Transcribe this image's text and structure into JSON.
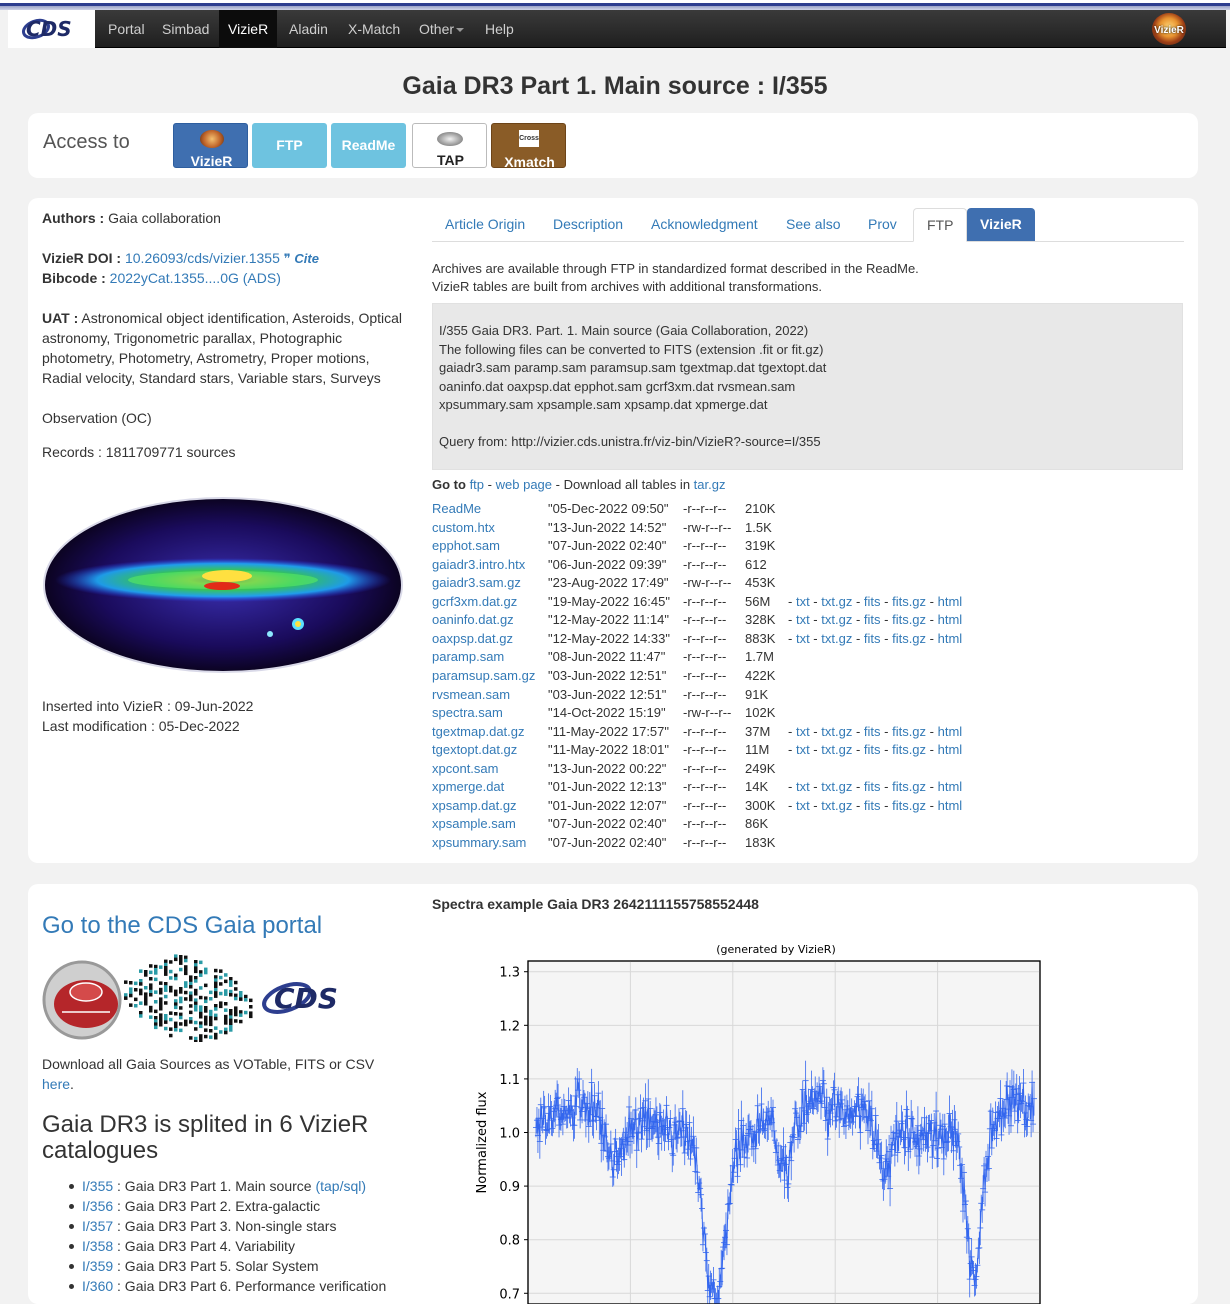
{
  "nav": {
    "logo": "CDS",
    "items": [
      "Portal",
      "Simbad",
      "VizieR",
      "Aladin",
      "X-Match",
      "Other",
      "Help"
    ],
    "active": "VizieR",
    "badge": "VizieR"
  },
  "page_title": "Gaia DR3 Part 1. Main source : I/355",
  "access": {
    "label": "Access to",
    "buttons": {
      "vizier": "VizieR",
      "ftp": "FTP",
      "readme": "ReadMe",
      "tap": "TAP",
      "xmatch": "Xmatch",
      "xmatch_icon_text": "Cross"
    },
    "colors": {
      "vizier": "#3f6fb0",
      "ftp": "#6ec3e0",
      "xmatch": "#8a5c27"
    }
  },
  "info": {
    "authors_label": "Authors :",
    "authors": "Gaia collaboration",
    "doi_label": "VizieR DOI :",
    "doi": "10.26093/cds/vizier.1355",
    "cite": "Cite",
    "bibcode_label": "Bibcode :",
    "bibcode": "2022yCat.1355....0G (ADS)",
    "uat_label": "UAT :",
    "uat": "Astronomical object identification, Asteroids, Optical astronomy, Trigonometric parallax, Photographic photometry, Photometry, Astrometry, Proper motions, Radial velocity, Standard stars, Variable stars, Surveys",
    "observation": "Observation (OC)",
    "records": "Records : 1811709771 sources",
    "inserted": "Inserted into VizieR : 09-Jun-2022",
    "modified": "Last modification : 05-Dec-2022"
  },
  "tabs": [
    "Article Origin",
    "Description",
    "Acknowledgment",
    "See also",
    "Prov",
    "FTP",
    "VizieR"
  ],
  "ftp": {
    "intro1": "Archives are available through FTP in standardized format described in the ReadMe.",
    "intro2": "VizieR tables are built from archives with additional transformations.",
    "box_lines": [
      "I/355 Gaia DR3. Part. 1. Main source (Gaia Collaboration, 2022)",
      "The following files can be converted to FITS (extension .fit or fit.gz)",
      "gaiadr3.sam paramp.sam paramsup.sam tgextmap.dat tgextopt.dat",
      "oaninfo.dat oaxpsp.dat epphot.sam gcrf3xm.dat rvsmean.sam",
      "xpsummary.sam xpsample.sam xpsamp.dat xpmerge.dat",
      "",
      "Query from: http://vizier.cds.unistra.fr/viz-bin/VizieR?-source=I/355"
    ],
    "goto_label": "Go to",
    "goto_ftp": "ftp",
    "goto_sep1": "-",
    "goto_web": "web page",
    "goto_dl": "- Download all tables in",
    "goto_tar": "tar.gz",
    "conv": {
      "txt": "txt",
      "txtgz": "txt.gz",
      "fits": "fits",
      "fitsgz": "fits.gz",
      "html": "html"
    },
    "files": [
      {
        "name": "ReadMe",
        "date": "\"05-Dec-2022 09:50\"",
        "perm": "-r--r--r--",
        "size": "210K",
        "conv": false
      },
      {
        "name": "custom.htx",
        "date": "\"13-Jun-2022 14:52\"",
        "perm": "-rw-r--r--",
        "size": "1.5K",
        "conv": false
      },
      {
        "name": "epphot.sam",
        "date": "\"07-Jun-2022 02:40\"",
        "perm": "-r--r--r--",
        "size": "319K",
        "conv": false
      },
      {
        "name": "gaiadr3.intro.htx",
        "date": "\"06-Jun-2022 09:39\"",
        "perm": "-r--r--r--",
        "size": "612",
        "conv": false
      },
      {
        "name": "gaiadr3.sam.gz",
        "date": "\"23-Aug-2022 17:49\"",
        "perm": "-rw-r--r--",
        "size": "453K",
        "conv": false
      },
      {
        "name": "gcrf3xm.dat.gz",
        "date": "\"19-May-2022 16:45\"",
        "perm": "-r--r--r--",
        "size": "56M",
        "conv": true
      },
      {
        "name": "oaninfo.dat.gz",
        "date": "\"12-May-2022 11:14\"",
        "perm": "-r--r--r--",
        "size": "328K",
        "conv": true
      },
      {
        "name": "oaxpsp.dat.gz",
        "date": "\"12-May-2022 14:33\"",
        "perm": "-r--r--r--",
        "size": "883K",
        "conv": true
      },
      {
        "name": "paramp.sam",
        "date": "\"08-Jun-2022 11:47\"",
        "perm": "-r--r--r--",
        "size": "1.7M",
        "conv": false
      },
      {
        "name": "paramsup.sam.gz",
        "date": "\"03-Jun-2022 12:51\"",
        "perm": "-r--r--r--",
        "size": "422K",
        "conv": false
      },
      {
        "name": "rvsmean.sam",
        "date": "\"03-Jun-2022 12:51\"",
        "perm": "-r--r--r--",
        "size": "91K",
        "conv": false
      },
      {
        "name": "spectra.sam",
        "date": "\"14-Oct-2022 15:19\"",
        "perm": "-rw-r--r--",
        "size": "102K",
        "conv": false
      },
      {
        "name": "tgextmap.dat.gz",
        "date": "\"11-May-2022 17:57\"",
        "perm": "-r--r--r--",
        "size": "37M",
        "conv": true
      },
      {
        "name": "tgextopt.dat.gz",
        "date": "\"11-May-2022 18:01\"",
        "perm": "-r--r--r--",
        "size": "11M",
        "conv": true
      },
      {
        "name": "xpcont.sam",
        "date": "\"13-Jun-2022 00:22\"",
        "perm": "-r--r--r--",
        "size": "249K",
        "conv": false
      },
      {
        "name": "xpmerge.dat",
        "date": "\"01-Jun-2022 12:13\"",
        "perm": "-r--r--r--",
        "size": "14K",
        "conv": true
      },
      {
        "name": "xpsamp.dat.gz",
        "date": "\"01-Jun-2022 12:07\"",
        "perm": "-r--r--r--",
        "size": "300K",
        "conv": true
      },
      {
        "name": "xpsample.sam",
        "date": "\"07-Jun-2022 02:40\"",
        "perm": "-r--r--r--",
        "size": "86K",
        "conv": false
      },
      {
        "name": "xpsummary.sam",
        "date": "\"07-Jun-2022 02:40\"",
        "perm": "-r--r--r--",
        "size": "183K",
        "conv": false
      }
    ]
  },
  "portal": {
    "title": "Go to the CDS Gaia portal",
    "download": "Download all Gaia Sources as VOTable, FITS or CSV",
    "here": "here",
    "here_suffix": ".",
    "split_title": "Gaia DR3 is splited in 6 VizieR catalogues",
    "catalogues": [
      {
        "id": "I/355",
        "desc": ": Gaia DR3 Part 1. Main source",
        "extra": "(tap/sql)"
      },
      {
        "id": "I/356",
        "desc": ": Gaia DR3 Part 2. Extra-galactic",
        "extra": ""
      },
      {
        "id": "I/357",
        "desc": ": Gaia DR3 Part 3. Non-single stars",
        "extra": ""
      },
      {
        "id": "I/358",
        "desc": ": Gaia DR3 Part 4. Variability",
        "extra": ""
      },
      {
        "id": "I/359",
        "desc": ": Gaia DR3 Part 5. Solar System",
        "extra": ""
      },
      {
        "id": "I/360",
        "desc": ": Gaia DR3 Part 6. Performance verification",
        "extra": ""
      }
    ]
  },
  "spectra": {
    "title": "Spectra example Gaia DR3 2642111155758552448"
  },
  "chart_data": {
    "type": "scatter",
    "title": "(generated by VizieR)",
    "xlabel": "",
    "ylabel": "Normalized flux",
    "ylim": [
      0.68,
      1.32
    ],
    "yticks": [
      0.7,
      0.8,
      0.9,
      1.0,
      1.1,
      1.2,
      1.3
    ],
    "ytick_labels": [
      "0.7",
      "0.8",
      "0.9",
      "1.0",
      "1.1",
      "1.2",
      "1.3"
    ],
    "grid": true,
    "series_color": "#3366ee",
    "profile_note": "noisy normalized flux ~1.0 with errorbars and absorption dips",
    "dips": [
      {
        "x": 0.36,
        "depth": 0.3,
        "width": 0.03
      },
      {
        "x": 0.16,
        "depth": 0.09,
        "width": 0.03
      },
      {
        "x": 0.88,
        "depth": 0.28,
        "width": 0.022
      },
      {
        "x": 0.5,
        "depth": 0.1,
        "width": 0.02
      },
      {
        "x": 0.7,
        "depth": 0.07,
        "width": 0.02
      }
    ]
  }
}
